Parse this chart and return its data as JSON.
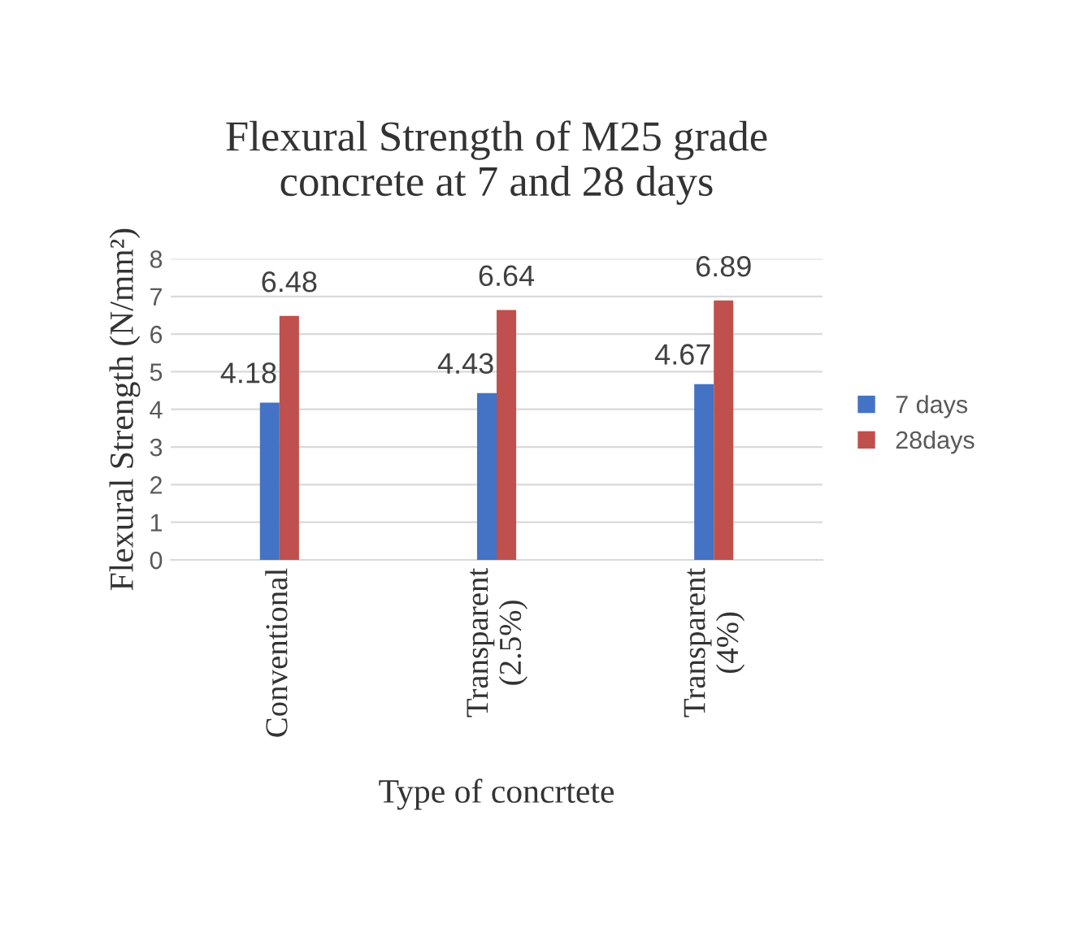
{
  "chart_data": {
    "type": "bar",
    "title": "Flexural Strength of M25 grade\nconcrete at 7 and 28 days",
    "xlabel": "Type of concrtete",
    "ylabel": "Flexural Strength (N/mm²)",
    "categories": [
      "Conventional",
      "Transparent\n(2.5%)",
      "Transparent\n(4%)"
    ],
    "series": [
      {
        "name": "7 days",
        "color": "#4472c4",
        "values": [
          4.18,
          4.43,
          4.67
        ]
      },
      {
        "name": "28days",
        "color": "#c0504d",
        "values": [
          6.48,
          6.64,
          6.89
        ]
      }
    ],
    "ylim": [
      0,
      8
    ],
    "yticks": [
      0,
      1,
      2,
      3,
      4,
      5,
      6,
      7,
      8
    ],
    "grid": "y",
    "legend": "right",
    "data_labels": true
  }
}
